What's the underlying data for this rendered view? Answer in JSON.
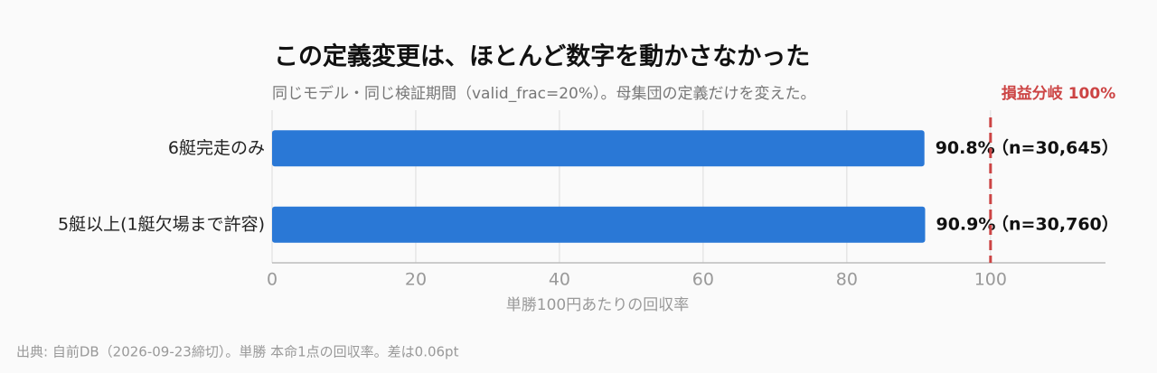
{
  "chart_data": {
    "type": "bar",
    "orientation": "horizontal",
    "title": "この定義変更は、ほとんど数字を動かさなかった",
    "subtitle": "同じモデル・同じ検証期間（valid_frac=20%）。母集団の定義だけを変えた。",
    "categories": [
      "6艇完走のみ",
      "5艇以上(1艇欠場まで許容)"
    ],
    "values": [
      90.8,
      90.9
    ],
    "value_labels": [
      "90.8%",
      "90.9%"
    ],
    "sample_labels": [
      "（n=30,645）",
      "（n=30,760）"
    ],
    "color": "#2a78d6",
    "xlim": [
      0,
      116
    ],
    "xticks": [
      0,
      20,
      40,
      60,
      80,
      100
    ],
    "xlabel": "単勝100円あたりの回収率",
    "grid": true,
    "reference_line": {
      "value": 100,
      "label": "損益分岐 100%",
      "color": "#cc4444"
    },
    "source": "出典: 自前DB（2026-09-23締切）。単勝 本命1点の回収率。差は0.06pt"
  }
}
